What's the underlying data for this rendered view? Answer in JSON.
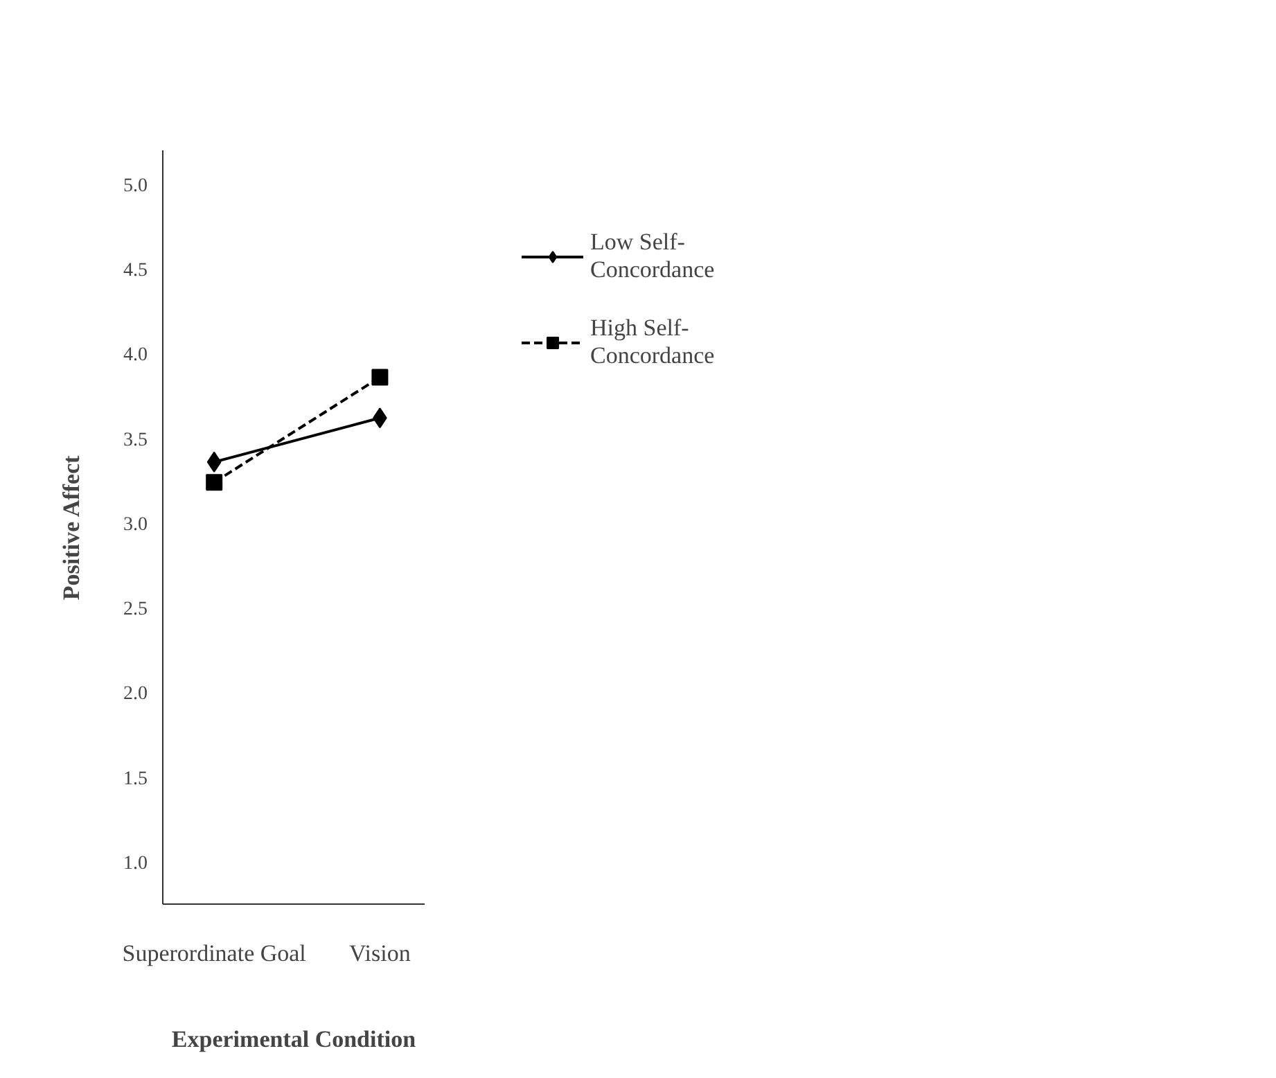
{
  "chart_data": {
    "type": "line",
    "xlabel": "Experimental Condition",
    "ylabel": "Positive Affect",
    "categories": [
      "Superordinate Goal",
      "Vision"
    ],
    "series": [
      {
        "name": "Low Self-Concordance",
        "color": "#000000",
        "values": [
          3.36,
          3.62
        ],
        "marker": "diamond",
        "line_style": "solid"
      },
      {
        "name": "High Self-Concordance",
        "color": "#000000",
        "values": [
          3.24,
          3.86
        ],
        "marker": "square",
        "line_style": "dashed"
      }
    ],
    "ylim": [
      0.75,
      5.2
    ],
    "yticks": [
      {
        "value": 1,
        "label": "1.0"
      },
      {
        "value": 1.5,
        "label": "1.5"
      },
      {
        "value": 2,
        "label": "2.0"
      },
      {
        "value": 2.5,
        "label": "2.5"
      },
      {
        "value": 3,
        "label": "3.0"
      },
      {
        "value": 3.5,
        "label": "3.5"
      },
      {
        "value": 4,
        "label": "4.0"
      },
      {
        "value": 4.5,
        "label": "4.5"
      },
      {
        "value": 5,
        "label": "5.0"
      }
    ],
    "grid": false,
    "legend": "top right"
  }
}
